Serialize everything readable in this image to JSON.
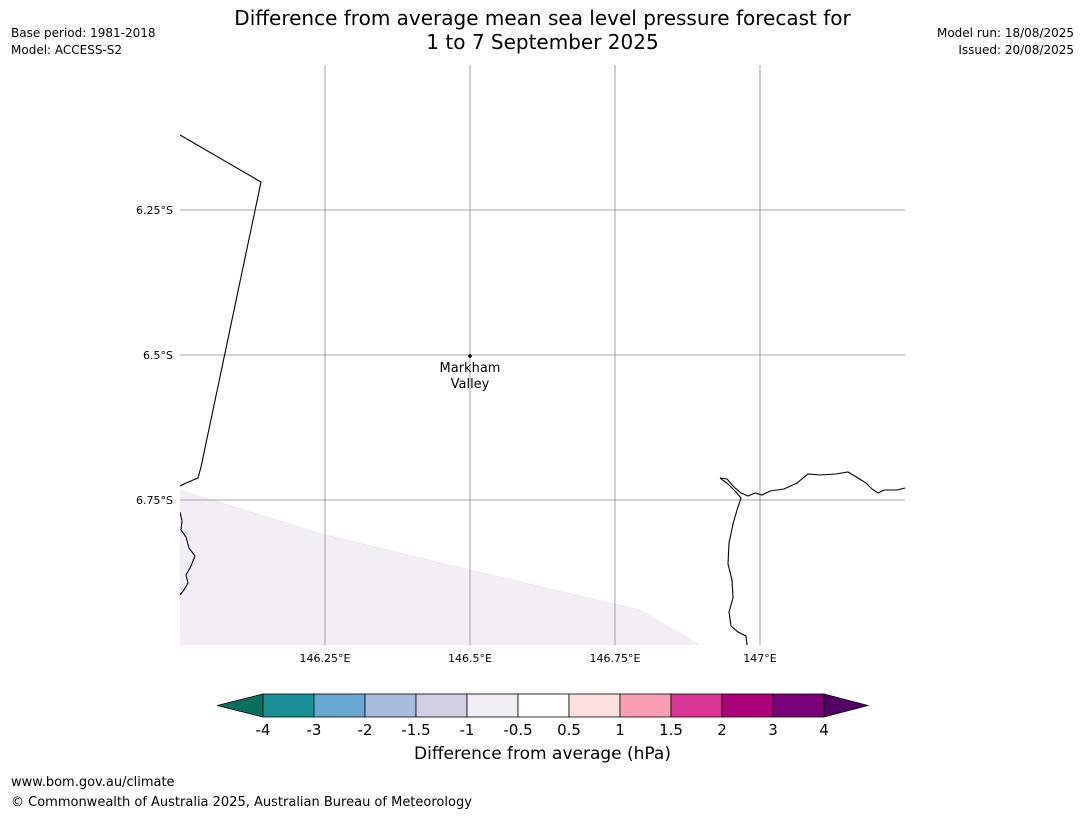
{
  "header": {
    "title_line1": "Difference from average mean sea level pressure forecast for",
    "title_line2": "1 to 7 September 2025",
    "base_period": "Base period: 1981-2018",
    "model": "Model: ACCESS-S2",
    "model_run": "Model run: 18/08/2025",
    "issued": "Issued: 20/08/2025"
  },
  "map": {
    "extent": {
      "lon_min": 146.0,
      "lon_max": 147.25,
      "lat_min": -7.0,
      "lat_max": -6.0
    },
    "lat_gridlines": [
      {
        "value": -6.25,
        "label": "6.25°S"
      },
      {
        "value": -6.5,
        "label": "6.5°S"
      },
      {
        "value": -6.75,
        "label": "6.75°S"
      }
    ],
    "lon_gridlines": [
      {
        "value": 146.25,
        "label": "146.25°E"
      },
      {
        "value": 146.5,
        "label": "146.5°E"
      },
      {
        "value": 146.75,
        "label": "146.75°E"
      },
      {
        "value": 147.0,
        "label": "147°E"
      }
    ],
    "places": [
      {
        "name_line1": "Markham",
        "name_line2": "Valley",
        "lon": 146.5,
        "lat": -6.5
      }
    ],
    "shaded_region_color": "#f3eef5",
    "coastline_color": "#000000",
    "gridline_color": "#888888"
  },
  "colorbar": {
    "title": "Difference from average (hPa)",
    "ticks": [
      "-4",
      "-3",
      "-2",
      "-1.5",
      "-1",
      "-0.5",
      "0.5",
      "1",
      "1.5",
      "2",
      "3",
      "4"
    ],
    "under_color": "#0b6e5e",
    "over_color": "#520064",
    "colors": [
      "#1b9096",
      "#69a9d1",
      "#a7bcdc",
      "#d1cee5",
      "#f3eef5",
      "#ffffff",
      "#fddfdd",
      "#f99fb5",
      "#da3497",
      "#ac0179",
      "#7a0177"
    ]
  },
  "footer": {
    "url": "www.bom.gov.au/climate",
    "copyright": "© Commonwealth of Australia 2025, Australian Bureau of Meteorology"
  }
}
